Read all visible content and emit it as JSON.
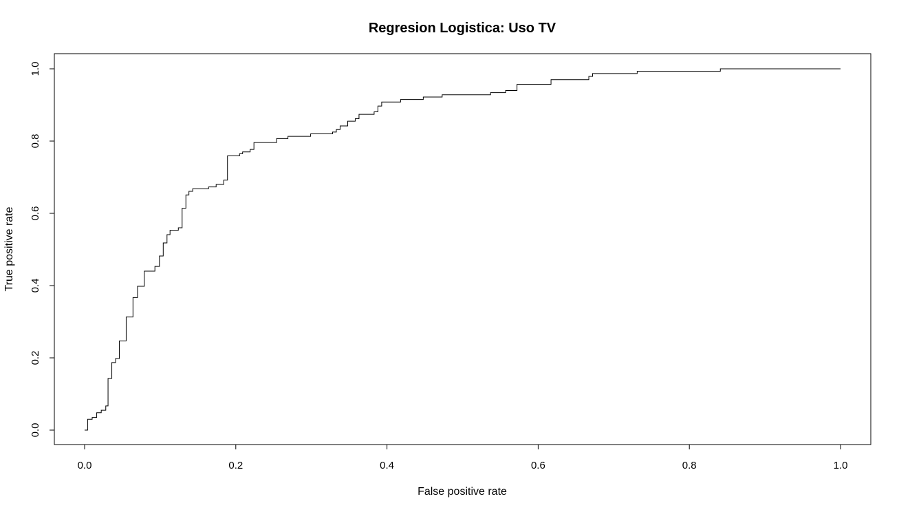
{
  "chart_data": {
    "type": "line",
    "title": "Regresion Logistica: Uso TV",
    "xlabel": "False positive rate",
    "ylabel": "True positive rate",
    "xlim": [
      0,
      1
    ],
    "ylim": [
      0,
      1
    ],
    "x_ticks": [
      "0.0",
      "0.2",
      "0.4",
      "0.6",
      "0.8",
      "1.0"
    ],
    "y_ticks": [
      "0.0",
      "0.2",
      "0.4",
      "0.6",
      "0.8",
      "1.0"
    ],
    "grid": false,
    "legend": "none",
    "line_color": "#000000",
    "series": [
      {
        "step": true,
        "points": [
          [
            0.0,
            0.0
          ],
          [
            0.004,
            0.0
          ],
          [
            0.004,
            0.03
          ],
          [
            0.01,
            0.03
          ],
          [
            0.01,
            0.035
          ],
          [
            0.016,
            0.035
          ],
          [
            0.016,
            0.048
          ],
          [
            0.022,
            0.048
          ],
          [
            0.022,
            0.055
          ],
          [
            0.028,
            0.055
          ],
          [
            0.028,
            0.067
          ],
          [
            0.031,
            0.067
          ],
          [
            0.031,
            0.143
          ],
          [
            0.036,
            0.143
          ],
          [
            0.036,
            0.187
          ],
          [
            0.041,
            0.187
          ],
          [
            0.041,
            0.198
          ],
          [
            0.046,
            0.198
          ],
          [
            0.046,
            0.247
          ],
          [
            0.055,
            0.247
          ],
          [
            0.055,
            0.313
          ],
          [
            0.064,
            0.313
          ],
          [
            0.064,
            0.367
          ],
          [
            0.07,
            0.367
          ],
          [
            0.07,
            0.398
          ],
          [
            0.079,
            0.398
          ],
          [
            0.079,
            0.44
          ],
          [
            0.093,
            0.44
          ],
          [
            0.093,
            0.453
          ],
          [
            0.099,
            0.453
          ],
          [
            0.099,
            0.482
          ],
          [
            0.104,
            0.482
          ],
          [
            0.104,
            0.518
          ],
          [
            0.109,
            0.518
          ],
          [
            0.109,
            0.541
          ],
          [
            0.113,
            0.541
          ],
          [
            0.113,
            0.553
          ],
          [
            0.124,
            0.553
          ],
          [
            0.124,
            0.56
          ],
          [
            0.129,
            0.56
          ],
          [
            0.129,
            0.614
          ],
          [
            0.134,
            0.614
          ],
          [
            0.134,
            0.651
          ],
          [
            0.138,
            0.651
          ],
          [
            0.138,
            0.661
          ],
          [
            0.143,
            0.661
          ],
          [
            0.143,
            0.668
          ],
          [
            0.164,
            0.668
          ],
          [
            0.164,
            0.673
          ],
          [
            0.174,
            0.673
          ],
          [
            0.174,
            0.68
          ],
          [
            0.184,
            0.68
          ],
          [
            0.184,
            0.692
          ],
          [
            0.189,
            0.692
          ],
          [
            0.189,
            0.759
          ],
          [
            0.205,
            0.759
          ],
          [
            0.205,
            0.765
          ],
          [
            0.209,
            0.765
          ],
          [
            0.209,
            0.77
          ],
          [
            0.219,
            0.77
          ],
          [
            0.219,
            0.777
          ],
          [
            0.224,
            0.777
          ],
          [
            0.224,
            0.796
          ],
          [
            0.254,
            0.796
          ],
          [
            0.254,
            0.807
          ],
          [
            0.269,
            0.807
          ],
          [
            0.269,
            0.813
          ],
          [
            0.299,
            0.813
          ],
          [
            0.299,
            0.82
          ],
          [
            0.328,
            0.82
          ],
          [
            0.328,
            0.825
          ],
          [
            0.333,
            0.825
          ],
          [
            0.333,
            0.832
          ],
          [
            0.338,
            0.832
          ],
          [
            0.338,
            0.842
          ],
          [
            0.348,
            0.842
          ],
          [
            0.348,
            0.855
          ],
          [
            0.358,
            0.855
          ],
          [
            0.358,
            0.862
          ],
          [
            0.363,
            0.862
          ],
          [
            0.363,
            0.874
          ],
          [
            0.383,
            0.874
          ],
          [
            0.383,
            0.881
          ],
          [
            0.388,
            0.881
          ],
          [
            0.388,
            0.897
          ],
          [
            0.393,
            0.897
          ],
          [
            0.393,
            0.908
          ],
          [
            0.418,
            0.908
          ],
          [
            0.418,
            0.915
          ],
          [
            0.448,
            0.915
          ],
          [
            0.448,
            0.922
          ],
          [
            0.473,
            0.922
          ],
          [
            0.473,
            0.928
          ],
          [
            0.537,
            0.928
          ],
          [
            0.537,
            0.934
          ],
          [
            0.557,
            0.934
          ],
          [
            0.557,
            0.94
          ],
          [
            0.572,
            0.94
          ],
          [
            0.572,
            0.957
          ],
          [
            0.617,
            0.957
          ],
          [
            0.617,
            0.97
          ],
          [
            0.667,
            0.97
          ],
          [
            0.667,
            0.979
          ],
          [
            0.672,
            0.979
          ],
          [
            0.672,
            0.987
          ],
          [
            0.731,
            0.987
          ],
          [
            0.731,
            0.993
          ],
          [
            0.841,
            0.993
          ],
          [
            0.841,
            1.0
          ],
          [
            1.0,
            1.0
          ]
        ]
      }
    ]
  }
}
